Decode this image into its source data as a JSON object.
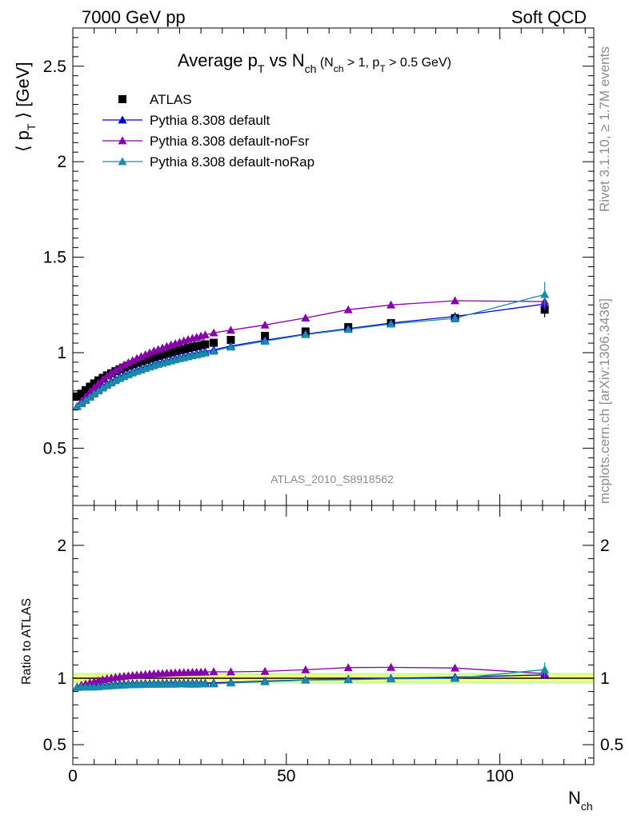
{
  "header": {
    "left": "7000 GeV pp",
    "right": "Soft QCD"
  },
  "side": {
    "rivet": "Rivet 3.1.10, ≥ 1.7M events",
    "mcplots": "mcplots.cern.ch [arXiv:1306.3436]"
  },
  "analysis_tag": "ATLAS_2010_S8918562",
  "title": {
    "main": "Average p",
    "main_sub": "T",
    "vs": " vs N",
    "vs_sub": "ch",
    "cond_open": " (N",
    "cond_sub1": "ch",
    "cond_mid": " > 1, p",
    "cond_sub2": "T",
    "cond_end": " > 0.5 GeV)"
  },
  "axes": {
    "ylabel_top": "⟨ p",
    "ylabel_top_sub": "T",
    "ylabel_top_end": " ⟩ [GeV]",
    "ylabel_ratio": "Ratio to ATLAS",
    "xlabel": "N",
    "xlabel_sub": "ch"
  },
  "colors": {
    "atlas": "#000000",
    "default": "#0000cc",
    "noFsr": "#8800aa",
    "noRap": "#1a8aaa",
    "band_inner": "#ffff77",
    "band_outer": "#ccff99"
  },
  "chart_data": {
    "type": "scatter",
    "xlim": [
      0,
      122
    ],
    "ylim": [
      0.2,
      2.7
    ],
    "ratio_ylim": [
      0.35,
      2.3
    ],
    "x_ticks": [
      0,
      50,
      100
    ],
    "x_tick_labels": [
      "0",
      "50",
      "100"
    ],
    "y_ticks": [
      0.5,
      1,
      1.5,
      2,
      2.5
    ],
    "y_tick_labels": [
      "0.5",
      "1",
      "1.5",
      "2",
      "2.5"
    ],
    "ratio_ticks": [
      0.5,
      1,
      2
    ],
    "ratio_tick_labels": [
      "0.5",
      "1",
      "2"
    ],
    "legend_position": "top-left",
    "x": [
      1,
      2,
      3,
      4,
      5,
      6,
      7,
      8,
      9,
      10,
      11,
      12,
      13,
      14,
      15,
      16,
      17,
      18,
      19,
      20,
      21,
      22,
      23,
      24,
      25,
      26,
      27,
      28,
      29,
      30,
      31,
      33,
      37,
      45,
      54.5,
      64.5,
      74.5,
      89.5,
      110.5
    ],
    "series": [
      {
        "name": "ATLAS",
        "marker": "square",
        "values": [
          0.771,
          0.785,
          0.804,
          0.822,
          0.839,
          0.855,
          0.868,
          0.881,
          0.892,
          0.903,
          0.913,
          0.922,
          0.931,
          0.939,
          0.947,
          0.955,
          0.962,
          0.969,
          0.976,
          0.983,
          0.989,
          0.995,
          1.001,
          1.007,
          1.013,
          1.018,
          1.024,
          1.029,
          1.034,
          1.039,
          1.044,
          1.052,
          1.067,
          1.088,
          1.111,
          1.134,
          1.155,
          1.181,
          1.225
        ],
        "error_last": 0.04
      },
      {
        "name": "Pythia 8.308 default",
        "marker": "triangle",
        "values": [
          0.72,
          0.738,
          0.756,
          0.774,
          0.791,
          0.808,
          0.823,
          0.837,
          0.85,
          0.862,
          0.873,
          0.883,
          0.892,
          0.901,
          0.909,
          0.917,
          0.925,
          0.932,
          0.939,
          0.946,
          0.952,
          0.958,
          0.964,
          0.97,
          0.976,
          0.981,
          0.986,
          0.991,
          0.996,
          1.001,
          1.006,
          1.015,
          1.035,
          1.065,
          1.098,
          1.126,
          1.155,
          1.19,
          1.255
        ],
        "ratio": [
          0.934,
          0.94,
          0.94,
          0.942,
          0.943,
          0.945,
          0.948,
          0.95,
          0.953,
          0.955,
          0.956,
          0.958,
          0.958,
          0.96,
          0.96,
          0.96,
          0.962,
          0.962,
          0.962,
          0.962,
          0.963,
          0.963,
          0.963,
          0.963,
          0.963,
          0.964,
          0.963,
          0.963,
          0.963,
          0.963,
          0.964,
          0.965,
          0.97,
          0.979,
          0.988,
          0.993,
          1.0,
          1.008,
          1.025
        ]
      },
      {
        "name": "Pythia 8.308 default-noFsr",
        "marker": "triangle",
        "values": [
          0.72,
          0.745,
          0.77,
          0.795,
          0.818,
          0.84,
          0.86,
          0.878,
          0.894,
          0.909,
          0.923,
          0.936,
          0.948,
          0.959,
          0.97,
          0.98,
          0.99,
          1.0,
          1.009,
          1.017,
          1.025,
          1.033,
          1.041,
          1.048,
          1.055,
          1.062,
          1.069,
          1.075,
          1.081,
          1.087,
          1.093,
          1.104,
          1.118,
          1.145,
          1.182,
          1.225,
          1.25,
          1.272,
          1.268
        ],
        "ratio": [
          0.934,
          0.949,
          0.958,
          0.967,
          0.975,
          0.982,
          0.99,
          0.997,
          1.002,
          1.007,
          1.011,
          1.015,
          1.018,
          1.021,
          1.024,
          1.026,
          1.029,
          1.032,
          1.034,
          1.035,
          1.036,
          1.038,
          1.04,
          1.041,
          1.042,
          1.043,
          1.044,
          1.045,
          1.045,
          1.046,
          1.047,
          1.049,
          1.048,
          1.052,
          1.064,
          1.08,
          1.082,
          1.077,
          1.035
        ],
        "error_last": 0.045
      },
      {
        "name": "Pythia 8.308 default-noRap",
        "marker": "triangle",
        "values": [
          0.718,
          0.733,
          0.75,
          0.767,
          0.784,
          0.8,
          0.815,
          0.829,
          0.842,
          0.854,
          0.865,
          0.875,
          0.885,
          0.894,
          0.902,
          0.91,
          0.918,
          0.925,
          0.932,
          0.939,
          0.945,
          0.951,
          0.957,
          0.963,
          0.969,
          0.974,
          0.979,
          0.984,
          0.989,
          0.994,
          0.999,
          1.008,
          1.03,
          1.06,
          1.095,
          1.122,
          1.15,
          1.18,
          1.305
        ],
        "ratio": [
          0.931,
          0.934,
          0.933,
          0.933,
          0.934,
          0.936,
          0.939,
          0.941,
          0.944,
          0.946,
          0.947,
          0.949,
          0.951,
          0.952,
          0.953,
          0.953,
          0.955,
          0.955,
          0.955,
          0.955,
          0.956,
          0.956,
          0.956,
          0.956,
          0.957,
          0.957,
          0.956,
          0.956,
          0.956,
          0.957,
          0.957,
          0.958,
          0.965,
          0.974,
          0.986,
          0.989,
          0.996,
          0.999,
          1.065
        ],
        "error_last": 0.065
      }
    ]
  }
}
